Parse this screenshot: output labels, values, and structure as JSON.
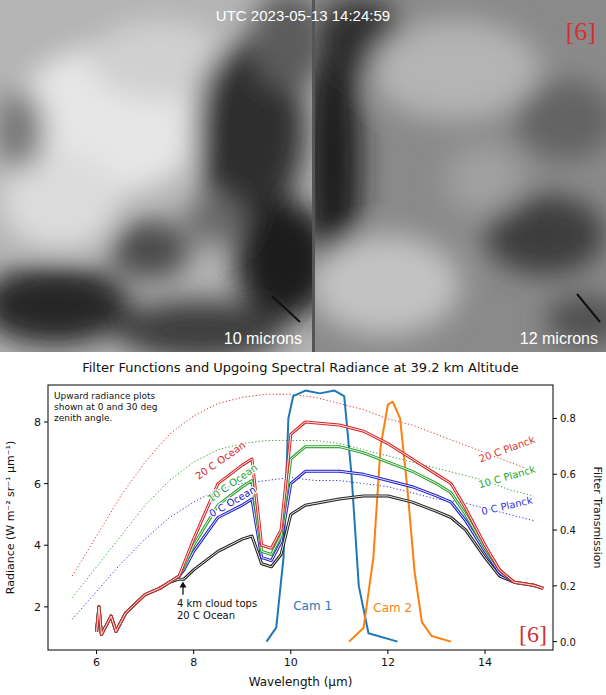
{
  "photo": {
    "timestamp": "UTC 2023-05-13 14:24:59",
    "panels": [
      "10 microns",
      "12 microns"
    ],
    "citation": "[6]"
  },
  "chart_data": {
    "type": "line",
    "title": "Filter Functions and Upgoing Spectral Radiance at 39.2 km Altitude",
    "x_label": "Wavelength (μm)",
    "y_label": "Radiance (W m⁻² sr⁻¹ μm⁻¹)",
    "y2_label": "Filter Transmission",
    "xlim": [
      5.0,
      15.4
    ],
    "xticks": [
      6,
      8,
      10,
      12,
      14
    ],
    "ylim": [
      0.6,
      9.2
    ],
    "yticks": [
      2,
      4,
      6,
      8
    ],
    "y2lim": [
      -0.03,
      0.92
    ],
    "y2ticks": [
      {
        "value": 0,
        "label": "0.0"
      },
      0.2,
      0.4,
      0.6,
      0.8
    ],
    "grid": false,
    "annotations": [
      "Upward radiance plots shown at 0 and 30 deg zenith angle.",
      "[6]"
    ],
    "series": [
      {
        "name": "20 C Ocean",
        "color": "#d62728",
        "line_style": "double",
        "x": [
          6.0,
          6.05,
          6.1,
          6.3,
          6.4,
          6.6,
          6.8,
          7.0,
          7.3,
          7.5,
          7.7,
          7.8,
          8.0,
          8.5,
          9.0,
          9.2,
          9.4,
          9.6,
          9.8,
          10.0,
          10.3,
          11.0,
          11.5,
          12.0,
          12.5,
          13.0,
          13.3,
          13.6,
          14.0,
          14.3,
          14.6,
          15.0,
          15.2
        ],
        "values": [
          1.2,
          2.0,
          1.1,
          1.7,
          1.2,
          1.8,
          2.1,
          2.4,
          2.6,
          2.8,
          3.0,
          3.4,
          4.2,
          6.0,
          6.6,
          6.8,
          4.0,
          3.9,
          4.5,
          7.6,
          8.0,
          7.9,
          7.7,
          7.3,
          6.8,
          6.3,
          6.0,
          5.2,
          4.0,
          3.2,
          2.8,
          2.7,
          2.6
        ]
      },
      {
        "name": "10 C Ocean",
        "color": "#2ca02c",
        "line_style": "double",
        "x": [
          6.0,
          6.05,
          6.1,
          6.3,
          6.4,
          6.6,
          6.8,
          7.0,
          7.3,
          7.5,
          7.7,
          7.8,
          8.0,
          8.5,
          9.0,
          9.2,
          9.4,
          9.6,
          9.8,
          10.0,
          10.3,
          11.0,
          11.5,
          12.0,
          12.5,
          13.0,
          13.3,
          13.6,
          14.0,
          14.3,
          14.6,
          15.0,
          15.2
        ],
        "values": [
          1.2,
          2.0,
          1.1,
          1.7,
          1.2,
          1.8,
          2.1,
          2.4,
          2.6,
          2.8,
          3.0,
          3.3,
          4.0,
          5.3,
          5.9,
          6.1,
          3.8,
          3.7,
          4.3,
          6.8,
          7.2,
          7.2,
          7.0,
          6.7,
          6.4,
          6.0,
          5.7,
          5.0,
          3.9,
          3.2,
          2.8,
          2.7,
          2.6
        ]
      },
      {
        "name": "0 C Ocean",
        "color": "#2222cc",
        "line_style": "double",
        "x": [
          6.0,
          6.05,
          6.1,
          6.3,
          6.4,
          6.6,
          6.8,
          7.0,
          7.3,
          7.5,
          7.7,
          7.8,
          8.0,
          8.5,
          9.0,
          9.2,
          9.4,
          9.6,
          9.8,
          10.0,
          10.3,
          11.0,
          11.5,
          12.0,
          12.5,
          13.0,
          13.3,
          13.6,
          14.0,
          14.3,
          14.6,
          15.0,
          15.2
        ],
        "values": [
          1.2,
          2.0,
          1.1,
          1.7,
          1.2,
          1.8,
          2.1,
          2.4,
          2.6,
          2.8,
          3.0,
          3.2,
          3.8,
          4.9,
          5.3,
          5.5,
          3.6,
          3.5,
          4.1,
          6.0,
          6.4,
          6.4,
          6.3,
          6.1,
          5.9,
          5.6,
          5.4,
          4.8,
          3.8,
          3.1,
          2.8,
          2.7,
          2.6
        ]
      },
      {
        "name": "4 km cloud tops 20 C Ocean",
        "color": "#222222",
        "line_style": "double",
        "x": [
          6.0,
          6.05,
          6.1,
          6.3,
          6.4,
          6.6,
          6.8,
          7.0,
          7.3,
          7.5,
          7.7,
          7.8,
          8.0,
          8.5,
          9.0,
          9.2,
          9.4,
          9.6,
          9.8,
          10.0,
          10.3,
          11.0,
          11.5,
          12.0,
          12.5,
          13.0,
          13.3,
          13.6,
          14.0,
          14.3,
          14.6,
          15.0,
          15.2
        ],
        "values": [
          1.2,
          2.0,
          1.1,
          1.7,
          1.2,
          1.8,
          2.1,
          2.4,
          2.6,
          2.8,
          2.9,
          2.9,
          3.2,
          3.8,
          4.2,
          4.3,
          3.4,
          3.3,
          3.7,
          5.0,
          5.3,
          5.5,
          5.6,
          5.6,
          5.4,
          5.1,
          4.9,
          4.5,
          3.6,
          3.0,
          2.8,
          2.7,
          2.6
        ]
      },
      {
        "name": "20 C Planck",
        "color": "#e03030",
        "line_style": "dotted",
        "x": [
          5.5,
          6.0,
          6.5,
          7.0,
          7.5,
          8.0,
          8.5,
          9.0,
          9.5,
          10.0,
          10.5,
          11.0,
          11.5,
          12.0,
          12.5,
          13.0,
          13.5,
          14.0,
          14.5,
          15.0
        ],
        "values": [
          3.0,
          4.3,
          5.6,
          6.7,
          7.6,
          8.2,
          8.6,
          8.8,
          8.9,
          8.9,
          8.8,
          8.6,
          8.4,
          8.1,
          7.9,
          7.6,
          7.3,
          7.0,
          6.7,
          6.4
        ]
      },
      {
        "name": "10 C Planck",
        "color": "#2ca02c",
        "line_style": "dotted",
        "x": [
          5.5,
          6.0,
          6.5,
          7.0,
          7.5,
          8.0,
          8.5,
          9.0,
          9.5,
          10.0,
          10.5,
          11.0,
          11.5,
          12.0,
          12.5,
          13.0,
          13.5,
          14.0,
          14.5,
          15.0
        ],
        "values": [
          2.3,
          3.3,
          4.3,
          5.3,
          6.1,
          6.7,
          7.1,
          7.3,
          7.4,
          7.4,
          7.4,
          7.3,
          7.1,
          6.9,
          6.7,
          6.5,
          6.3,
          6.1,
          5.8,
          5.6
        ]
      },
      {
        "name": "0 C Planck",
        "color": "#3333dd",
        "line_style": "dotted",
        "x": [
          5.5,
          6.0,
          6.5,
          7.0,
          7.5,
          8.0,
          8.5,
          9.0,
          9.5,
          10.0,
          10.5,
          11.0,
          11.5,
          12.0,
          12.5,
          13.0,
          13.5,
          14.0,
          14.5,
          15.0
        ],
        "values": [
          1.6,
          2.5,
          3.4,
          4.2,
          4.9,
          5.4,
          5.8,
          6.0,
          6.1,
          6.2,
          6.1,
          6.1,
          6.0,
          5.9,
          5.7,
          5.5,
          5.4,
          5.2,
          5.0,
          4.8
        ]
      },
      {
        "name": "Cam 1",
        "color": "#1f77b4",
        "line_style": "solid",
        "axis": "y2",
        "x": [
          9.5,
          9.7,
          9.85,
          9.95,
          10.05,
          10.3,
          10.6,
          10.9,
          11.1,
          11.25,
          11.4,
          11.6,
          12.2
        ],
        "values": [
          0.0,
          0.05,
          0.3,
          0.8,
          0.88,
          0.9,
          0.89,
          0.9,
          0.88,
          0.6,
          0.2,
          0.03,
          0.0
        ]
      },
      {
        "name": "Cam 2",
        "color": "#ff7f0e",
        "line_style": "solid",
        "axis": "y2",
        "x": [
          11.2,
          11.5,
          11.7,
          11.85,
          12.0,
          12.1,
          12.25,
          12.4,
          12.55,
          12.7,
          12.9,
          13.3
        ],
        "values": [
          0.0,
          0.05,
          0.3,
          0.7,
          0.85,
          0.86,
          0.8,
          0.55,
          0.25,
          0.07,
          0.02,
          0.0
        ]
      }
    ]
  }
}
